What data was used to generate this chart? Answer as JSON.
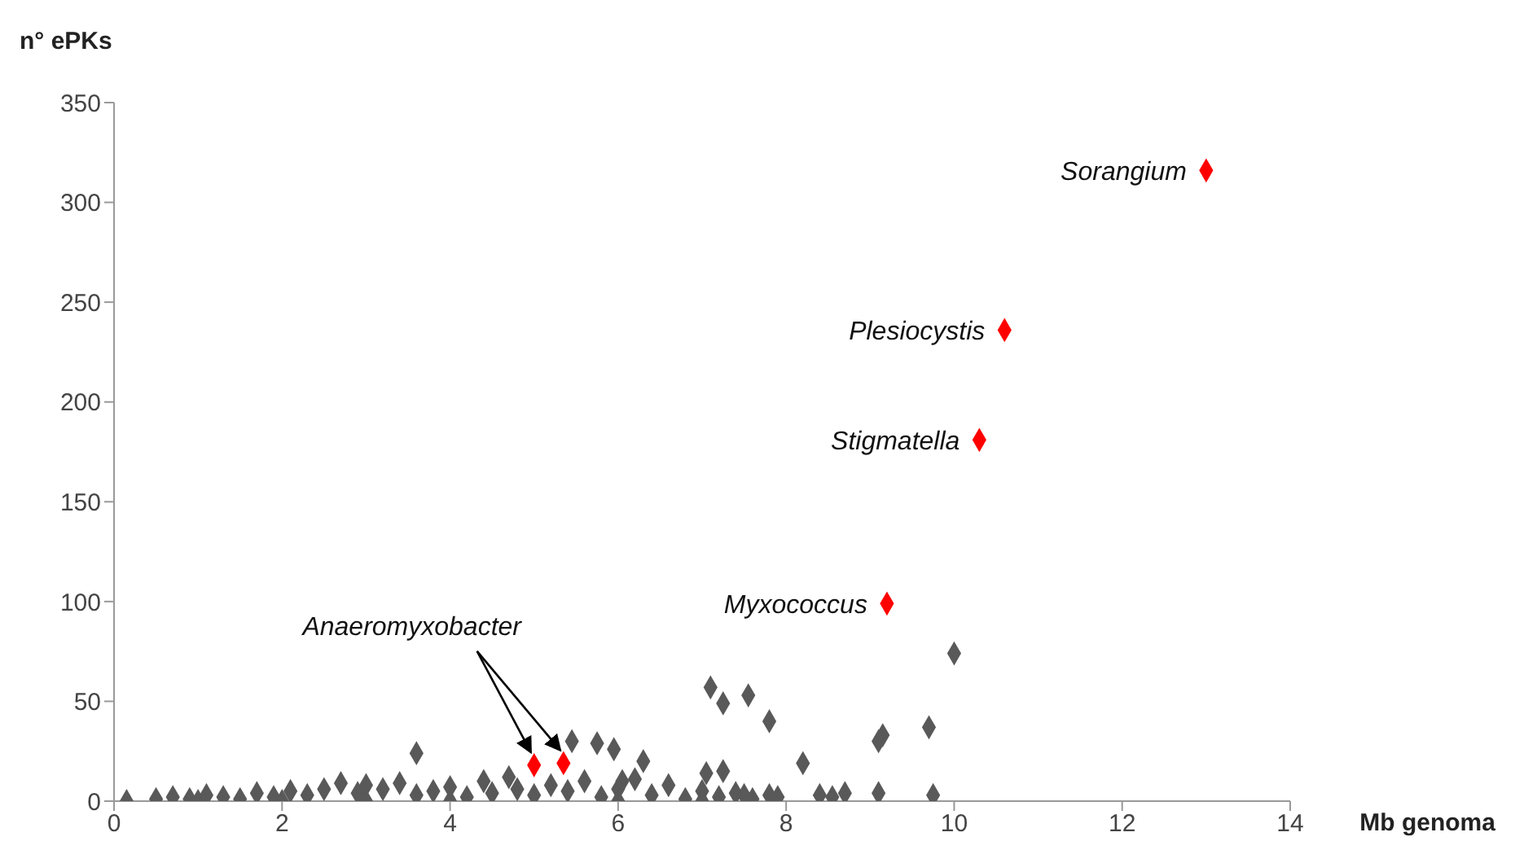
{
  "chart_data": {
    "type": "scatter",
    "xlabel": "Mb genoma",
    "ylabel": "n° ePKs",
    "xlim": [
      0,
      14
    ],
    "xticks": [
      0,
      2,
      4,
      6,
      8,
      10,
      12,
      14
    ],
    "ylim": [
      0,
      350
    ],
    "yticks": [
      0,
      50,
      100,
      150,
      200,
      250,
      300,
      350
    ],
    "grid": false,
    "legend": false,
    "marker": "diamond",
    "series": [
      {
        "color": "#595959",
        "x": [
          0.15,
          0.5,
          0.7,
          0.9,
          1.0,
          1.1,
          1.3,
          1.5,
          1.7,
          1.9,
          2.0,
          2.1,
          2.3,
          2.5,
          2.7,
          2.9,
          3.0,
          3.0,
          3.2,
          3.4,
          3.6,
          3.8,
          4.0,
          4.0,
          4.2,
          4.4,
          4.5,
          4.7,
          4.8,
          5.0,
          5.2,
          5.4,
          5.6,
          5.8,
          6.0,
          6.0,
          6.2,
          6.4,
          6.6,
          6.8,
          7.0,
          7.0,
          7.2,
          7.4,
          7.6,
          7.9,
          3.6,
          5.45,
          5.75,
          5.95,
          6.3,
          6.05,
          7.1,
          7.25,
          7.55,
          7.8,
          8.2,
          9.15,
          9.1,
          9.7,
          10.0,
          7.05,
          7.25,
          8.4,
          8.55,
          8.7,
          9.1,
          9.75,
          7.5,
          7.8
        ],
        "values": [
          0,
          1,
          2,
          1,
          0,
          3,
          2,
          1,
          4,
          2,
          0,
          5,
          3,
          6,
          9,
          4,
          8,
          0,
          6,
          9,
          3,
          5,
          7,
          0,
          2,
          10,
          4,
          12,
          6,
          3,
          8,
          5,
          10,
          2,
          6,
          0,
          11,
          3,
          8,
          1,
          5,
          0,
          2,
          4,
          1,
          2,
          24,
          30,
          29,
          26,
          20,
          10,
          57,
          49,
          53,
          40,
          19,
          33,
          30,
          37,
          74,
          14,
          15,
          3,
          2,
          4,
          4,
          3,
          3,
          3
        ]
      },
      {
        "color": "#ff0000",
        "x": [
          13.0,
          10.6,
          10.3,
          9.2,
          5.0,
          5.35
        ],
        "values": [
          316,
          236,
          181,
          99,
          18,
          19
        ]
      }
    ],
    "annotations": [
      {
        "text": "Sorangium",
        "x": 13.0,
        "y": 316
      },
      {
        "text": "Plesiocystis",
        "x": 10.6,
        "y": 236
      },
      {
        "text": "Stigmatella",
        "x": 10.3,
        "y": 181
      },
      {
        "text": "Myxococcus",
        "x": 9.2,
        "y": 99
      },
      {
        "text": "Anaeromyxobacter",
        "x": 5.0,
        "y": 18
      }
    ]
  }
}
